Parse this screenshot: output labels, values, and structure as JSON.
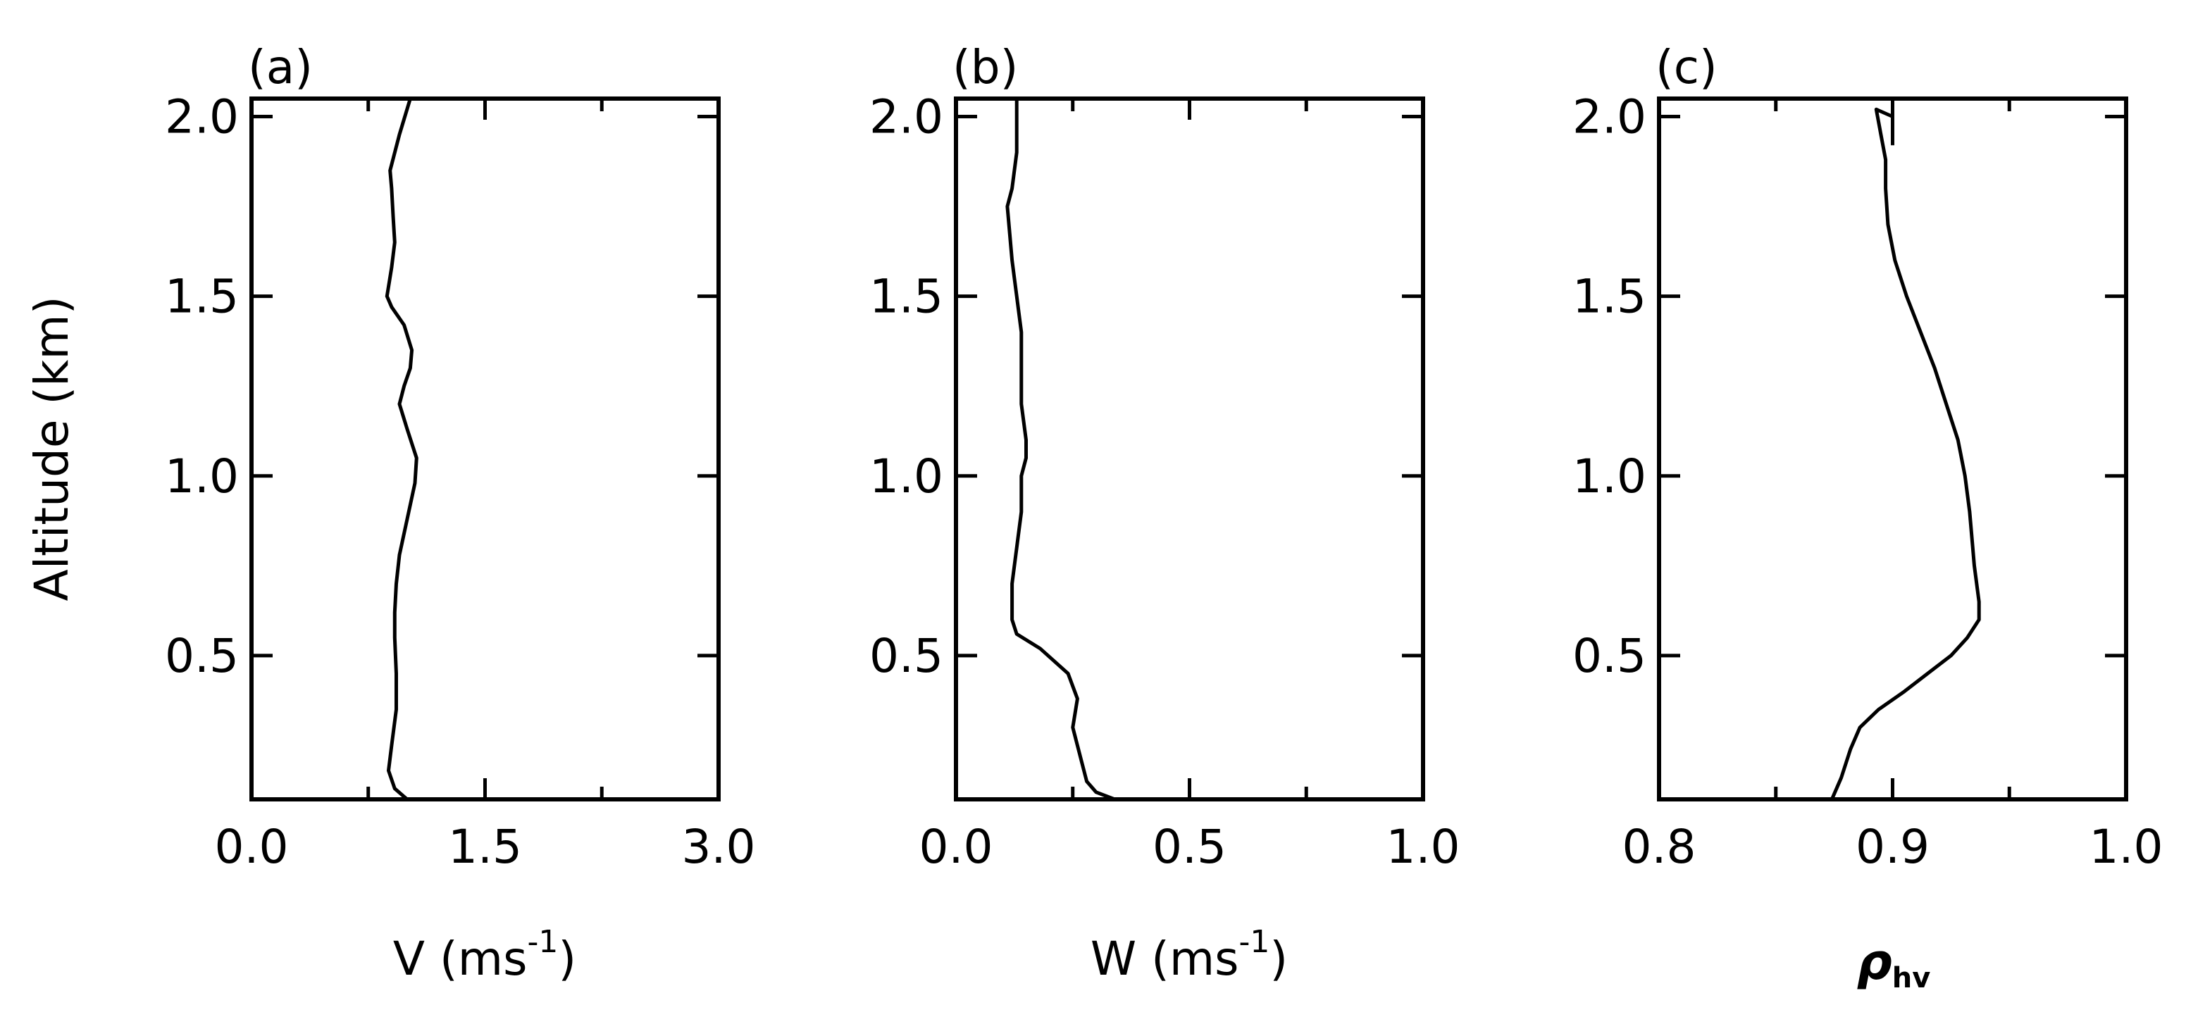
{
  "chart_data": [
    {
      "type": "line",
      "panel_label": "(a)",
      "xlabel": "V (ms",
      "xlabel_sup": "-1",
      "xlabel_close": ")",
      "ylabel": "Altitude (km)",
      "xlim": [
        0,
        3
      ],
      "ylim": [
        0.1,
        2.05
      ],
      "xticks": [
        "0.0",
        "1.5",
        "3.0"
      ],
      "xtick_values": [
        0,
        1.5,
        3.0
      ],
      "yticks": [
        "0.5",
        "1.0",
        "1.5",
        "2.0"
      ],
      "ytick_values": [
        0.5,
        1.0,
        1.5,
        2.0
      ],
      "series": [
        {
          "x": [
            1.0,
            0.92,
            0.88,
            0.9,
            0.93,
            0.93,
            0.92,
            0.92,
            0.93,
            0.95,
            1.0,
            1.05,
            1.06,
            1.0,
            0.95,
            0.98,
            1.02,
            1.03,
            0.98,
            0.9,
            0.87,
            0.9,
            0.92,
            0.91,
            0.9,
            0.89,
            0.95,
            1.02
          ],
          "y": [
            0.1,
            0.13,
            0.18,
            0.25,
            0.35,
            0.45,
            0.55,
            0.62,
            0.7,
            0.78,
            0.88,
            0.98,
            1.05,
            1.13,
            1.2,
            1.25,
            1.3,
            1.35,
            1.42,
            1.47,
            1.5,
            1.58,
            1.65,
            1.72,
            1.8,
            1.85,
            1.95,
            2.05
          ]
        }
      ]
    },
    {
      "type": "line",
      "panel_label": "(b)",
      "xlabel": "W (ms",
      "xlabel_sup": "-1",
      "xlabel_close": ")",
      "xlim": [
        0,
        1
      ],
      "ylim": [
        0.1,
        2.05
      ],
      "xticks": [
        "0.0",
        "0.5",
        "1.0"
      ],
      "xtick_values": [
        0,
        0.5,
        1.0
      ],
      "yticks": [
        "0.5",
        "1.0",
        "1.5",
        "2.0"
      ],
      "ytick_values": [
        0.5,
        1.0,
        1.5,
        2.0
      ],
      "series": [
        {
          "x": [
            0.34,
            0.3,
            0.28,
            0.27,
            0.26,
            0.25,
            0.26,
            0.24,
            0.18,
            0.13,
            0.12,
            0.12,
            0.13,
            0.14,
            0.14,
            0.15,
            0.15,
            0.14,
            0.14,
            0.14,
            0.13,
            0.12,
            0.11,
            0.12,
            0.13,
            0.13
          ],
          "y": [
            0.1,
            0.12,
            0.15,
            0.2,
            0.25,
            0.3,
            0.38,
            0.45,
            0.52,
            0.56,
            0.6,
            0.7,
            0.8,
            0.9,
            1.0,
            1.05,
            1.1,
            1.2,
            1.3,
            1.4,
            1.5,
            1.6,
            1.75,
            1.8,
            1.9,
            2.05
          ]
        }
      ]
    },
    {
      "type": "line",
      "panel_label": "(c)",
      "xlabel": "ρ",
      "xlabel_sub": "hv",
      "xlim": [
        0.8,
        1.0
      ],
      "ylim": [
        0.1,
        2.05
      ],
      "xticks": [
        "0.8",
        "0.9",
        "1.0"
      ],
      "xtick_values": [
        0.8,
        0.9,
        1.0
      ],
      "yticks": [
        "0.5",
        "1.0",
        "1.5",
        "2.0"
      ],
      "ytick_values": [
        0.5,
        1.0,
        1.5,
        2.0
      ],
      "series": [
        {
          "x": [
            0.874,
            0.878,
            0.882,
            0.886,
            0.894,
            0.905,
            0.915,
            0.925,
            0.932,
            0.937,
            0.937,
            0.935,
            0.933,
            0.931,
            0.928,
            0.923,
            0.918,
            0.912,
            0.906,
            0.901,
            0.898,
            0.897,
            0.897,
            0.895,
            0.893,
            0.9,
            0.9
          ],
          "y": [
            0.1,
            0.16,
            0.24,
            0.3,
            0.35,
            0.4,
            0.45,
            0.5,
            0.55,
            0.6,
            0.65,
            0.75,
            0.9,
            1.0,
            1.1,
            1.2,
            1.3,
            1.4,
            1.5,
            1.6,
            1.7,
            1.8,
            1.88,
            1.95,
            2.02,
            2.0,
            1.92
          ]
        }
      ]
    }
  ]
}
